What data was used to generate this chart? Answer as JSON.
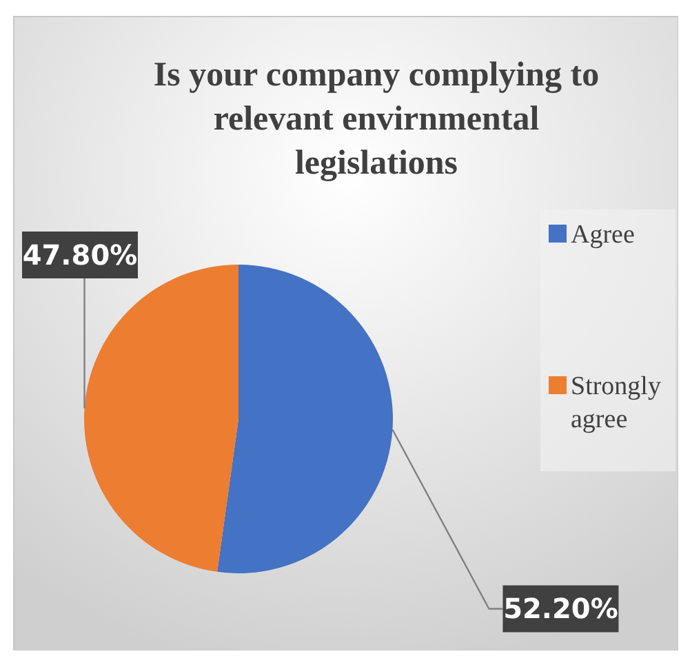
{
  "chart_data": {
    "type": "pie",
    "title": "Is your company complying to relevant envirnmental legislations",
    "categories": [
      "Agree",
      "Strongly agree"
    ],
    "values": [
      52.2,
      47.8
    ],
    "colors": [
      "#4472c4",
      "#ed7d31"
    ],
    "value_labels": [
      "52.20%",
      "47.80%"
    ],
    "legend": "right"
  }
}
